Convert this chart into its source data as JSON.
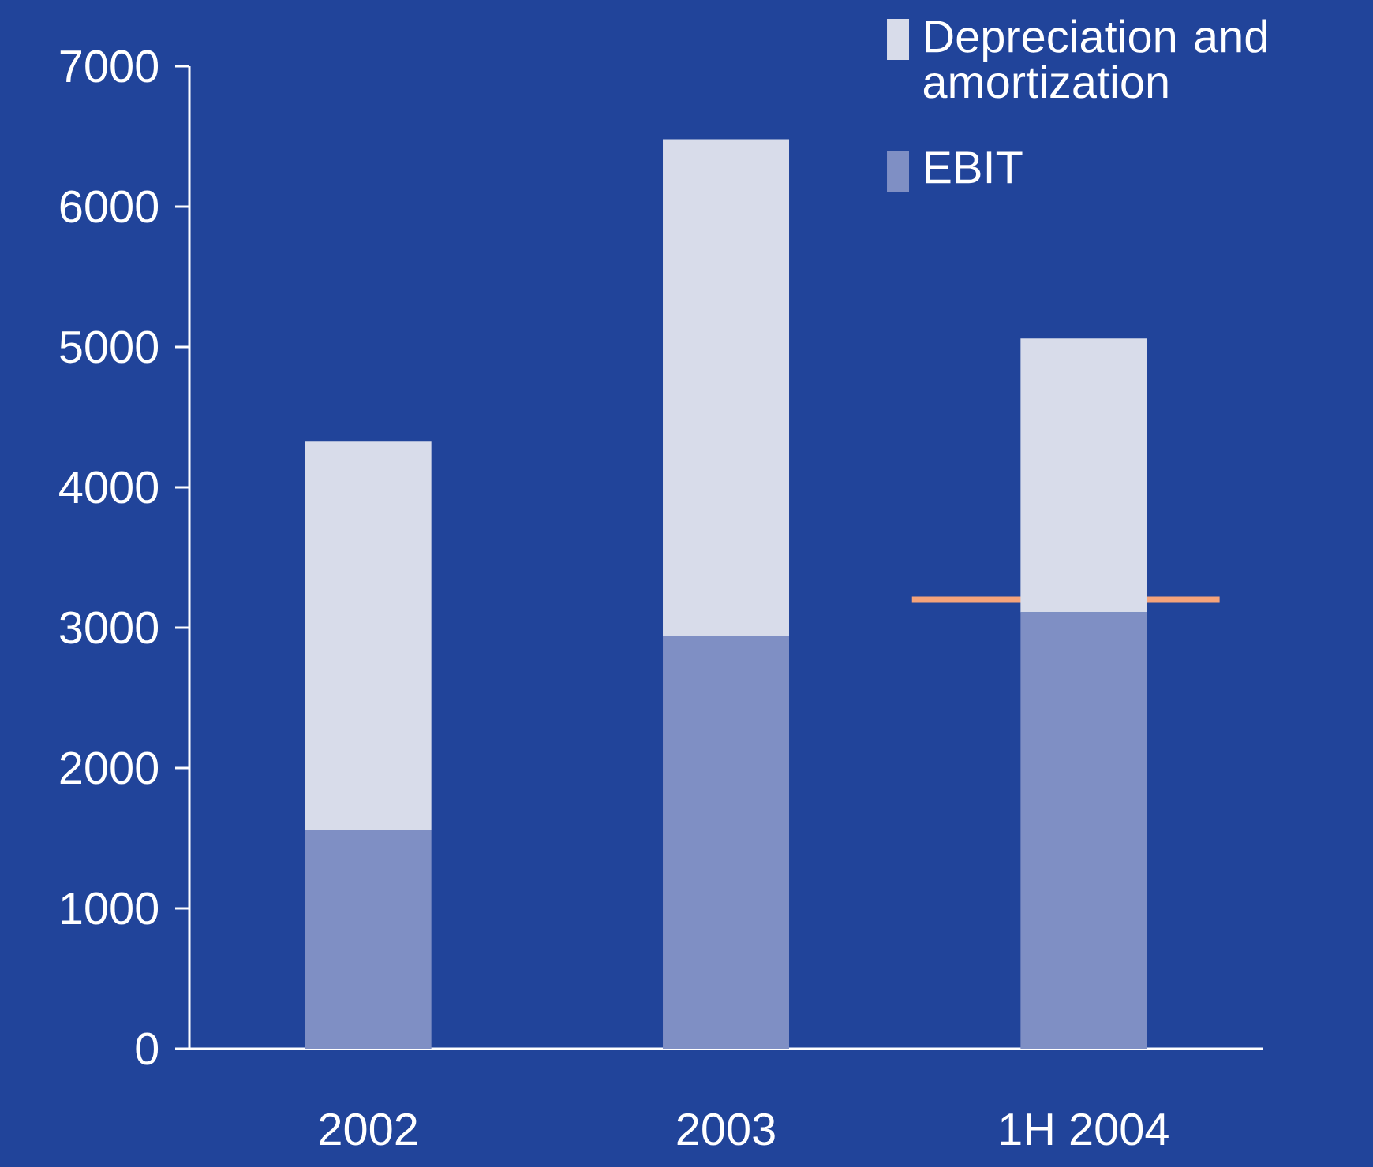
{
  "chart_data": {
    "type": "bar",
    "stacked": true,
    "categories": [
      "2002",
      "2003",
      "1H 2004"
    ],
    "series": [
      {
        "name": "EBIT",
        "color": "#7f8fc4",
        "values": [
          1560,
          2940,
          3110
        ]
      },
      {
        "name": "Depreciation and amortization",
        "color": "#d8dcea",
        "values": [
          2770,
          3540,
          1950
        ]
      }
    ],
    "ylim": [
      0,
      7000
    ],
    "yticks": [
      0,
      1000,
      2000,
      3000,
      4000,
      5000,
      6000,
      7000
    ],
    "ref_lines": [
      {
        "axis": "y",
        "value": 3200,
        "color": "#f5a37a"
      }
    ],
    "legend": "top right",
    "grid": false
  }
}
